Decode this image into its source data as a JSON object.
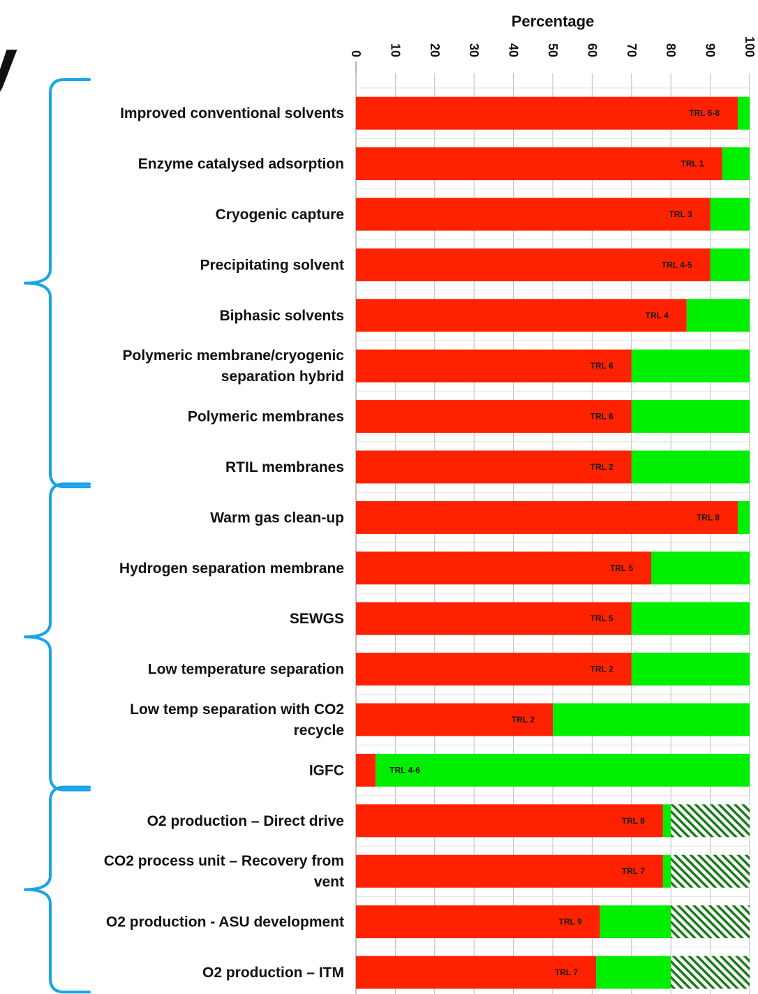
{
  "partial_heading": "y",
  "chart_data": {
    "type": "bar",
    "orientation": "horizontal",
    "stacked": true,
    "xlabel": "Percentage",
    "xlim": [
      0,
      100
    ],
    "xticks": [
      "0",
      "10",
      "20",
      "30",
      "40",
      "50",
      "60",
      "70",
      "80",
      "90",
      "100"
    ],
    "grid": true,
    "colors": {
      "red": "#ff2200",
      "green": "#00ee00",
      "hatch": "#1a7a1a",
      "bracket": "#1aa3e8",
      "grid": "#bbbbbb"
    },
    "categories": [
      [
        "Improved conventional solvents"
      ],
      [
        "Enzyme catalysed adsorption"
      ],
      [
        "Cryogenic capture"
      ],
      [
        "Precipitating solvent"
      ],
      [
        "Biphasic solvents"
      ],
      [
        "Polymeric membrane/cryogenic",
        "separation hybrid"
      ],
      [
        "Polymeric membranes"
      ],
      [
        "RTIL membranes"
      ],
      [
        "Warm gas clean-up"
      ],
      [
        "Hydrogen separation membrane"
      ],
      [
        "SEWGS"
      ],
      [
        "Low temperature separation"
      ],
      [
        "Low temp separation with CO2",
        "recycle"
      ],
      [
        "IGFC"
      ],
      [
        "O2 production – Direct drive"
      ],
      [
        "CO2 process unit – Recovery from",
        "vent"
      ],
      [
        "O2 production - ASU development"
      ],
      [
        "O2 production – ITM"
      ]
    ],
    "series": [
      {
        "values": [
          97,
          93,
          90,
          90,
          84,
          70,
          70,
          70,
          97,
          75,
          70,
          70,
          50,
          5,
          78,
          78,
          62,
          61
        ]
      },
      {
        "values": [
          3,
          7,
          10,
          10,
          16,
          30,
          30,
          30,
          3,
          25,
          30,
          30,
          50,
          95,
          2,
          2,
          18,
          19
        ]
      },
      {
        "values": [
          0,
          0,
          0,
          0,
          0,
          0,
          0,
          0,
          0,
          0,
          0,
          0,
          0,
          0,
          20,
          20,
          20,
          20
        ]
      }
    ],
    "trl_labels": [
      "TRL 6-8",
      "TRL 1",
      "TRL 3",
      "TRL 4-5",
      "TRL 4",
      "TRL 6",
      "TRL 6",
      "TRL 2",
      "TRL 8",
      "TRL 5",
      "TRL 5",
      "TRL 2",
      "TRL 2",
      "TRL 4-6",
      "TRL 8",
      "TRL 7",
      "TRL 9",
      "TRL 7"
    ],
    "groups": [
      {
        "from": 0,
        "to": 7
      },
      {
        "from": 8,
        "to": 13
      },
      {
        "from": 14,
        "to": 17
      }
    ]
  }
}
